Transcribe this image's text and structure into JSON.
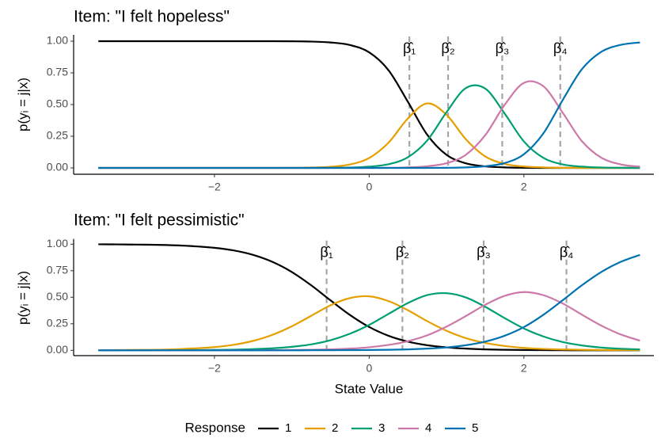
{
  "chart_data": [
    {
      "type": "line",
      "title": "Item: \"I felt hopeless\"",
      "y_label": "p(yᵢ = j|x)",
      "x": [
        -3.5,
        -3.25,
        -3,
        -2.75,
        -2.5,
        -2.25,
        -2,
        -1.75,
        -1.5,
        -1.25,
        -1,
        -0.75,
        -0.5,
        -0.25,
        0,
        0.25,
        0.5,
        0.75,
        1,
        1.25,
        1.5,
        1.75,
        2,
        2.25,
        2.5,
        2.75,
        3,
        3.25,
        3.5
      ],
      "series": [
        {
          "name": "1",
          "color": "#000000",
          "values": [
            1,
            1,
            1,
            1,
            1,
            1,
            1,
            1,
            1,
            1,
            0.999,
            0.997,
            0.99,
            0.97,
            0.912,
            0.771,
            0.522,
            0.262,
            0.103,
            0.036,
            0.012,
            0.004,
            0.001,
            0,
            0,
            0,
            0,
            0,
            0
          ]
        },
        {
          "name": "2",
          "color": "#E69F00",
          "values": [
            0,
            0,
            0,
            0,
            0,
            0,
            0,
            0,
            0,
            0,
            0.001,
            0.003,
            0.009,
            0.027,
            0.078,
            0.199,
            0.39,
            0.509,
            0.419,
            0.226,
            0.091,
            0.032,
            0.011,
            0.004,
            0.001,
            0,
            0,
            0,
            0
          ]
        },
        {
          "name": "3",
          "color": "#009E73",
          "values": [
            0,
            0,
            0,
            0,
            0,
            0,
            0,
            0,
            0,
            0,
            0,
            0,
            0.001,
            0.003,
            0.01,
            0.029,
            0.084,
            0.216,
            0.44,
            0.63,
            0.626,
            0.43,
            0.209,
            0.08,
            0.028,
            0.01,
            0.003,
            0.001,
            0
          ]
        },
        {
          "name": "4",
          "color": "#CC79A7",
          "values": [
            0,
            0,
            0,
            0,
            0,
            0,
            0,
            0,
            0,
            0,
            0,
            0,
            0,
            0,
            0,
            0.001,
            0.004,
            0.013,
            0.037,
            0.104,
            0.258,
            0.496,
            0.671,
            0.645,
            0.437,
            0.211,
            0.081,
            0.028,
            0.01
          ]
        },
        {
          "name": "5",
          "color": "#0072B2",
          "values": [
            0,
            0,
            0,
            0,
            0,
            0,
            0,
            0,
            0,
            0,
            0,
            0,
            0,
            0,
            0,
            0,
            0,
            0,
            0.001,
            0.004,
            0.013,
            0.038,
            0.108,
            0.271,
            0.534,
            0.779,
            0.916,
            0.971,
            0.99
          ]
        }
      ],
      "thresholds": [
        {
          "label": "β̂₁",
          "x": 0.52
        },
        {
          "label": "β̂₂",
          "x": 1.02
        },
        {
          "label": "β̂₃",
          "x": 1.72
        },
        {
          "label": "β̂₄",
          "x": 2.47
        }
      ],
      "xlim": [
        -3.82,
        3.68
      ],
      "xticks": [
        {
          "value": -2,
          "label": "−2"
        },
        0,
        2
      ],
      "ylim": [
        -0.05,
        1.05
      ],
      "yticks": [
        {
          "value": 0,
          "label": "0.00"
        },
        {
          "value": 0.25,
          "label": "0.25"
        },
        {
          "value": 0.5,
          "label": "0.50"
        },
        {
          "value": 0.75,
          "label": "0.75"
        },
        {
          "value": 1,
          "label": "1.00"
        }
      ]
    },
    {
      "type": "line",
      "title": "Item: \"I felt pessimistic\"",
      "y_label": "p(yᵢ = j|x)",
      "x_label": "State Value",
      "x": [
        -3.5,
        -3.25,
        -3,
        -2.75,
        -2.5,
        -2.25,
        -2,
        -1.75,
        -1.5,
        -1.25,
        -1,
        -0.75,
        -0.5,
        -0.25,
        0,
        0.25,
        0.5,
        0.75,
        1,
        1.25,
        1.5,
        1.75,
        2,
        2.25,
        2.5,
        2.75,
        3,
        3.25,
        3.5
      ],
      "series": [
        {
          "name": "1",
          "color": "#000000",
          "values": [
            0.999,
            0.998,
            0.996,
            0.994,
            0.989,
            0.98,
            0.966,
            0.941,
            0.899,
            0.833,
            0.738,
            0.613,
            0.471,
            0.334,
            0.22,
            0.137,
            0.082,
            0.048,
            0.028,
            0.016,
            0.009,
            0.005,
            0.003,
            0.002,
            0.001,
            0,
            0,
            0,
            0
          ]
        },
        {
          "name": "2",
          "color": "#E69F00",
          "values": [
            0.001,
            0.002,
            0.004,
            0.005,
            0.01,
            0.018,
            0.03,
            0.052,
            0.089,
            0.146,
            0.226,
            0.325,
            0.424,
            0.492,
            0.509,
            0.464,
            0.378,
            0.275,
            0.184,
            0.115,
            0.07,
            0.041,
            0.023,
            0.013,
            0.008,
            0.005,
            0.003,
            0.002,
            0.001
          ]
        },
        {
          "name": "3",
          "color": "#009E73",
          "values": [
            0,
            0,
            0,
            0.001,
            0.001,
            0.002,
            0.004,
            0.006,
            0.011,
            0.019,
            0.033,
            0.056,
            0.095,
            0.156,
            0.239,
            0.343,
            0.445,
            0.52,
            0.538,
            0.498,
            0.41,
            0.304,
            0.206,
            0.131,
            0.078,
            0.046,
            0.026,
            0.015,
            0.009
          ]
        },
        {
          "name": "4",
          "color": "#CC79A7",
          "values": [
            0,
            0,
            0,
            0,
            0,
            0,
            0,
            0.001,
            0.001,
            0.002,
            0.003,
            0.005,
            0.009,
            0.016,
            0.029,
            0.051,
            0.086,
            0.141,
            0.223,
            0.323,
            0.429,
            0.513,
            0.549,
            0.52,
            0.442,
            0.336,
            0.233,
            0.15,
            0.091
          ]
        },
        {
          "name": "5",
          "color": "#0072B2",
          "values": [
            0,
            0,
            0,
            0,
            0,
            0,
            0,
            0,
            0,
            0,
            0,
            0.001,
            0.001,
            0.002,
            0.003,
            0.005,
            0.009,
            0.016,
            0.027,
            0.048,
            0.082,
            0.137,
            0.219,
            0.334,
            0.471,
            0.613,
            0.738,
            0.833,
            0.899
          ]
        }
      ],
      "thresholds": [
        {
          "label": "β̂₁",
          "x": -0.55
        },
        {
          "label": "β̂₂",
          "x": 0.43
        },
        {
          "label": "β̂₃",
          "x": 1.48
        },
        {
          "label": "β̂₄",
          "x": 2.55
        }
      ],
      "xlim": [
        -3.82,
        3.68
      ],
      "xticks": [
        {
          "value": -2,
          "label": "−2"
        },
        0,
        2
      ],
      "ylim": [
        -0.05,
        1.05
      ],
      "yticks": [
        {
          "value": 0,
          "label": "0.00"
        },
        {
          "value": 0.25,
          "label": "0.25"
        },
        {
          "value": 0.5,
          "label": "0.50"
        },
        {
          "value": 0.75,
          "label": "0.75"
        },
        {
          "value": 1,
          "label": "1.00"
        }
      ]
    }
  ],
  "legend": {
    "title": "Response",
    "position": "bottom"
  }
}
